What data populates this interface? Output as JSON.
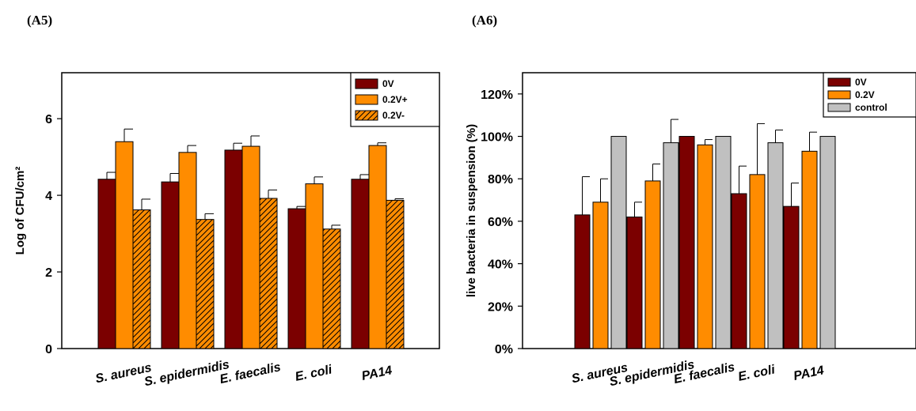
{
  "panels": {
    "left_label": "(A5)",
    "right_label": "(A6)"
  },
  "colors": {
    "dark_red": "#7b0000",
    "orange": "#ff8c00",
    "gray": "#c0c0c0"
  },
  "chart_data": [
    {
      "type": "bar",
      "title": "",
      "xlabel": "",
      "ylabel": "Log of CFU/cm²",
      "ylim": [
        0,
        7.2
      ],
      "yticks": [
        0,
        2,
        4,
        6
      ],
      "ytick_labels": [
        "0",
        "2",
        "4",
        "6"
      ],
      "grid": false,
      "legend_position": "top-right",
      "categories": [
        "S. aureus",
        "S. epidermidis",
        "E. faecalis",
        "E. coli",
        "PA14"
      ],
      "series": [
        {
          "name": "0V",
          "color": "#7b0000",
          "pattern": "solid",
          "values": [
            4.42,
            4.35,
            5.18,
            3.65,
            4.42
          ],
          "errors": [
            0.18,
            0.22,
            0.18,
            0.06,
            0.12
          ]
        },
        {
          "name": "0.2V+",
          "color": "#ff8c00",
          "pattern": "solid",
          "values": [
            5.4,
            5.12,
            5.28,
            4.3,
            5.3
          ],
          "errors": [
            0.33,
            0.18,
            0.27,
            0.18,
            0.07
          ]
        },
        {
          "name": "0.2V-",
          "color": "#ff8c00",
          "pattern": "hatch",
          "values": [
            3.62,
            3.37,
            3.92,
            3.12,
            3.87
          ],
          "errors": [
            0.28,
            0.15,
            0.22,
            0.1,
            0.04
          ]
        }
      ]
    },
    {
      "type": "bar",
      "title": "",
      "xlabel": "",
      "ylabel": "live bacteria in suspension (%)",
      "ylim": [
        0,
        130
      ],
      "yticks": [
        0,
        20,
        40,
        60,
        80,
        100,
        120
      ],
      "ytick_labels": [
        "0%",
        "20%",
        "40%",
        "60%",
        "80%",
        "100%",
        "120%"
      ],
      "grid": false,
      "legend_position": "top-right",
      "categories": [
        "S. aureus",
        "S. epidermidis",
        "E. faecalis",
        "E. coli",
        "PA14"
      ],
      "series": [
        {
          "name": "0V",
          "color": "#7b0000",
          "pattern": "solid",
          "values": [
            63,
            62,
            100,
            73,
            67
          ],
          "errors": [
            18,
            7,
            0,
            13,
            11
          ]
        },
        {
          "name": "0.2V",
          "color": "#ff8c00",
          "pattern": "solid",
          "values": [
            69,
            79,
            96,
            82,
            93
          ],
          "errors": [
            11,
            8,
            2.5,
            24,
            9
          ]
        },
        {
          "name": "control",
          "color": "#c0c0c0",
          "pattern": "solid",
          "values": [
            100,
            97,
            100,
            97,
            100
          ],
          "errors": [
            0,
            11,
            0,
            6,
            0
          ]
        }
      ]
    }
  ]
}
